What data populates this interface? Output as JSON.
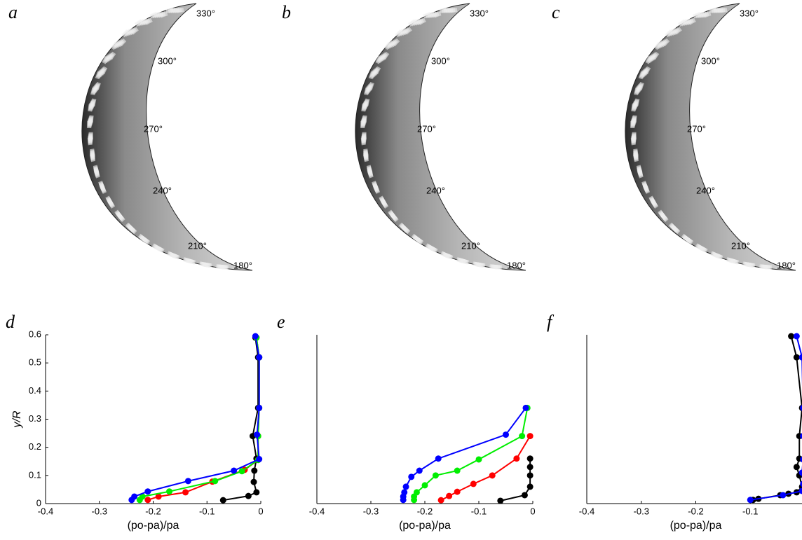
{
  "photos": [
    {
      "label": "a",
      "angles": [
        "330°",
        "300°",
        "270°",
        "240°",
        "210°",
        "180°"
      ]
    },
    {
      "label": "b",
      "angles": [
        "330°",
        "300°",
        "270°",
        "240°",
        "210°",
        "180°"
      ]
    },
    {
      "label": "c",
      "angles": [
        "330°",
        "300°",
        "270°",
        "240°",
        "210°",
        "180°"
      ]
    }
  ],
  "chart_data": [
    {
      "type": "line",
      "title": "d",
      "x_label": "(po-pa)/pa",
      "y_label": "y/R",
      "xlim": [
        -0.4,
        0
      ],
      "xticks": [
        -0.4,
        -0.3,
        -0.2,
        -0.1,
        0
      ],
      "ylim": [
        0,
        0.6
      ],
      "yticks": [
        0,
        0.1,
        0.2,
        0.3,
        0.4,
        0.5,
        0.6
      ],
      "series": [
        {
          "color": "#000000",
          "x": [
            -0.07,
            -0.023,
            -0.008,
            -0.013,
            -0.012,
            -0.008,
            -0.015,
            -0.005,
            -0.005,
            -0.01
          ],
          "values": [
            0.012,
            0.027,
            0.04,
            0.077,
            0.117,
            0.16,
            0.24,
            0.34,
            0.52,
            0.59
          ]
        },
        {
          "color": "#ff0000",
          "x": [
            -0.21,
            -0.19,
            -0.14,
            -0.09,
            -0.03,
            -0.005,
            -0.005,
            -0.003,
            -0.003,
            -0.008
          ],
          "values": [
            0.013,
            0.025,
            0.04,
            0.078,
            0.12,
            0.155,
            0.24,
            0.34,
            0.52,
            0.59
          ]
        },
        {
          "color": "#00ee00",
          "x": [
            -0.225,
            -0.22,
            -0.17,
            -0.085,
            -0.035,
            -0.005,
            -0.005,
            -0.003,
            -0.003,
            -0.008
          ],
          "values": [
            0.013,
            0.025,
            0.043,
            0.08,
            0.115,
            0.155,
            0.24,
            0.34,
            0.52,
            0.59
          ]
        },
        {
          "color": "#0000ff",
          "x": [
            -0.24,
            -0.235,
            -0.21,
            -0.135,
            -0.05,
            -0.003,
            -0.007,
            -0.003,
            -0.003,
            -0.01
          ],
          "values": [
            0.013,
            0.025,
            0.043,
            0.08,
            0.117,
            0.158,
            0.245,
            0.34,
            0.52,
            0.595
          ]
        }
      ]
    },
    {
      "type": "line",
      "title": "e",
      "x_label": "(po-pa)/pa",
      "xlim": [
        -0.4,
        0
      ],
      "xticks": [
        -0.4,
        -0.3,
        -0.2,
        -0.1,
        0
      ],
      "ylim": [
        0,
        0.6
      ],
      "series": [
        {
          "color": "#000000",
          "x": [
            -0.06,
            -0.015,
            -0.005,
            -0.005,
            -0.005,
            -0.005
          ],
          "values": [
            0.01,
            0.03,
            0.06,
            0.1,
            0.13,
            0.16
          ]
        },
        {
          "color": "#ff0000",
          "x": [
            -0.17,
            -0.155,
            -0.14,
            -0.11,
            -0.075,
            -0.03,
            -0.005
          ],
          "values": [
            0.012,
            0.027,
            0.042,
            0.07,
            0.1,
            0.16,
            0.24
          ]
        },
        {
          "color": "#00ee00",
          "x": [
            -0.22,
            -0.22,
            -0.215,
            -0.2,
            -0.18,
            -0.14,
            -0.1,
            -0.02,
            -0.01
          ],
          "values": [
            0.013,
            0.025,
            0.04,
            0.065,
            0.1,
            0.117,
            0.157,
            0.24,
            0.34
          ]
        },
        {
          "color": "#0000ff",
          "x": [
            -0.24,
            -0.24,
            -0.238,
            -0.235,
            -0.225,
            -0.21,
            -0.175,
            -0.05,
            -0.013
          ],
          "values": [
            0.013,
            0.025,
            0.04,
            0.06,
            0.095,
            0.117,
            0.16,
            0.245,
            0.34
          ]
        }
      ]
    },
    {
      "type": "line",
      "title": "f",
      "x_label": "(po-pa)/pa",
      "xlim": [
        -0.4,
        0
      ],
      "xticks": [
        -0.4,
        -0.3,
        -0.2,
        -0.1,
        0
      ],
      "ylim": [
        0,
        0.6
      ],
      "series": [
        {
          "color": "#000000",
          "x": [
            -0.095,
            -0.085,
            -0.045,
            -0.03,
            -0.015,
            -0.005,
            -0.01,
            -0.015,
            -0.01,
            -0.01,
            -0.005,
            -0.015,
            -0.025
          ],
          "values": [
            0.013,
            0.017,
            0.03,
            0.035,
            0.04,
            0.06,
            0.1,
            0.13,
            0.16,
            0.24,
            0.34,
            0.52,
            0.595
          ]
        },
        {
          "color": "#0000ff",
          "x": [
            -0.1,
            -0.04,
            -0.005,
            -0.003,
            -0.005,
            -0.003,
            -0.003,
            -0.003,
            -0.005,
            -0.015
          ],
          "values": [
            0.013,
            0.03,
            0.045,
            0.07,
            0.11,
            0.157,
            0.24,
            0.34,
            0.52,
            0.595
          ]
        }
      ]
    }
  ]
}
